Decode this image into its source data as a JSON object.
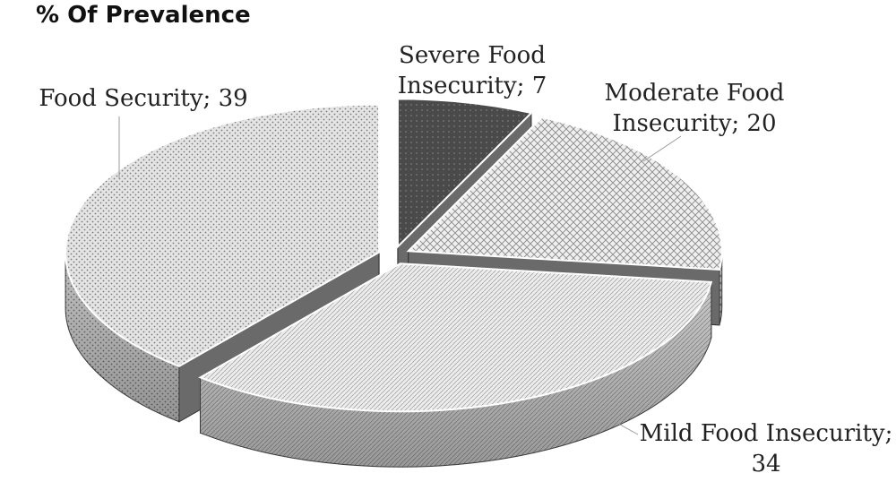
{
  "chart_data": {
    "type": "pie",
    "title": "% Of Prevalence",
    "style": "3d-exploded",
    "slices": [
      {
        "name": "Severe Food Insecurity",
        "value": 7,
        "label_lines": [
          "Severe Food",
          "Insecurity; 7"
        ]
      },
      {
        "name": "Moderate Food Insecurity",
        "value": 20,
        "label_lines": [
          "Moderate Food",
          "Insecurity; 20"
        ]
      },
      {
        "name": "Mild Food Insecurity",
        "value": 34,
        "label_lines": [
          "Mild Food Insecurity;",
          "34"
        ]
      },
      {
        "name": "Food Security",
        "value": 39,
        "label_lines": [
          "Food Security; 39"
        ]
      }
    ],
    "legend": "none"
  }
}
